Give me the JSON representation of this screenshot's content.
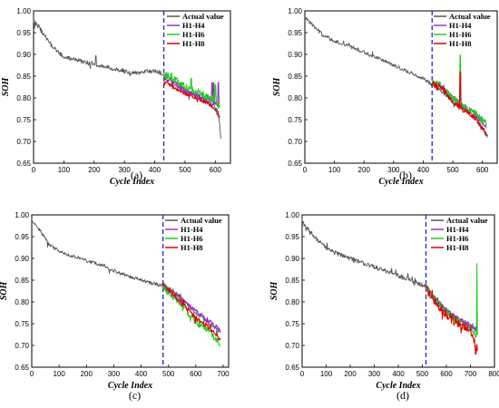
{
  "chart_data": [
    {
      "type": "line",
      "panel_label": "(a)",
      "xlabel": "Cycle Index",
      "ylabel": "SOH",
      "xlim": [
        0,
        650
      ],
      "ylim": [
        0.65,
        1.0
      ],
      "x_ticks": [
        0,
        100,
        200,
        300,
        400,
        500,
        600
      ],
      "y_ticks": [
        "0.65",
        "0.70",
        "0.75",
        "0.80",
        "0.85",
        "0.90",
        "0.95",
        "1.00"
      ],
      "split_x": 430,
      "legend_position": "top-right",
      "series": [
        {
          "name": "Actual value",
          "color": "#555555",
          "start": 0,
          "end": 620,
          "anchors": [
            [
              0,
              0.975
            ],
            [
              20,
              0.96
            ],
            [
              50,
              0.93
            ],
            [
              80,
              0.905
            ],
            [
              100,
              0.895
            ],
            [
              150,
              0.885
            ],
            [
              200,
              0.878
            ],
            [
              250,
              0.87
            ],
            [
              300,
              0.86
            ],
            [
              350,
              0.858
            ],
            [
              400,
              0.862
            ],
            [
              430,
              0.855
            ],
            [
              470,
              0.835
            ],
            [
              500,
              0.82
            ],
            [
              540,
              0.805
            ],
            [
              580,
              0.79
            ],
            [
              610,
              0.77
            ],
            [
              620,
              0.7
            ]
          ],
          "noise": 0.005,
          "spikes": [
            [
              205,
              0.897
            ],
            [
              595,
              0.835
            ]
          ]
        },
        {
          "name": "H1-H4",
          "color": "#9933cc",
          "start": 430,
          "end": 615,
          "anchors": [
            [
              430,
              0.848
            ],
            [
              470,
              0.83
            ],
            [
              500,
              0.815
            ],
            [
              540,
              0.805
            ],
            [
              580,
              0.795
            ],
            [
              600,
              0.785
            ],
            [
              615,
              0.775
            ]
          ],
          "noise": 0.006,
          "spikes": [
            [
              590,
              0.835
            ],
            [
              610,
              0.835
            ]
          ]
        },
        {
          "name": "H1-H6",
          "color": "#22cc22",
          "start": 430,
          "end": 615,
          "anchors": [
            [
              430,
              0.855
            ],
            [
              470,
              0.84
            ],
            [
              500,
              0.825
            ],
            [
              540,
              0.815
            ],
            [
              580,
              0.8
            ],
            [
              600,
              0.79
            ],
            [
              615,
              0.78
            ]
          ],
          "noise": 0.008,
          "spikes": [
            [
              520,
              0.845
            ],
            [
              600,
              0.83
            ]
          ]
        },
        {
          "name": "H1-H8",
          "color": "#dd0000",
          "start": 430,
          "end": 615,
          "anchors": [
            [
              430,
              0.84
            ],
            [
              470,
              0.82
            ],
            [
              500,
              0.81
            ],
            [
              540,
              0.8
            ],
            [
              580,
              0.785
            ],
            [
              600,
              0.77
            ],
            [
              615,
              0.755
            ]
          ],
          "noise": 0.004,
          "spikes": []
        }
      ]
    },
    {
      "type": "line",
      "panel_label": "(b)",
      "xlabel": "Cycle Index",
      "ylabel": "SOH",
      "xlim": [
        0,
        650
      ],
      "ylim": [
        0.65,
        1.0
      ],
      "x_ticks": [
        0,
        100,
        200,
        300,
        400,
        500,
        600
      ],
      "y_ticks": [
        "0.65",
        "0.70",
        "0.75",
        "0.80",
        "0.85",
        "0.90",
        "0.95",
        "1.00"
      ],
      "split_x": 430,
      "legend_position": "top-right",
      "series": [
        {
          "name": "Actual value",
          "color": "#555555",
          "start": 0,
          "end": 620,
          "anchors": [
            [
              0,
              0.985
            ],
            [
              30,
              0.965
            ],
            [
              60,
              0.945
            ],
            [
              100,
              0.93
            ],
            [
              150,
              0.92
            ],
            [
              200,
              0.905
            ],
            [
              250,
              0.89
            ],
            [
              300,
              0.875
            ],
            [
              350,
              0.86
            ],
            [
              400,
              0.845
            ],
            [
              430,
              0.83
            ],
            [
              470,
              0.81
            ],
            [
              500,
              0.79
            ],
            [
              540,
              0.775
            ],
            [
              580,
              0.755
            ],
            [
              610,
              0.72
            ],
            [
              620,
              0.71
            ]
          ],
          "noise": 0.004,
          "spikes": []
        },
        {
          "name": "H1-H4",
          "color": "#9933cc",
          "start": 430,
          "end": 615,
          "anchors": [
            [
              430,
              0.835
            ],
            [
              460,
              0.83
            ],
            [
              500,
              0.8
            ],
            [
              540,
              0.78
            ],
            [
              580,
              0.76
            ],
            [
              600,
              0.745
            ],
            [
              615,
              0.73
            ]
          ],
          "noise": 0.006,
          "spikes": [
            [
              525,
              0.82
            ]
          ]
        },
        {
          "name": "H1-H6",
          "color": "#22cc22",
          "start": 430,
          "end": 615,
          "anchors": [
            [
              430,
              0.838
            ],
            [
              460,
              0.83
            ],
            [
              500,
              0.8
            ],
            [
              540,
              0.78
            ],
            [
              580,
              0.765
            ],
            [
              600,
              0.75
            ],
            [
              615,
              0.74
            ]
          ],
          "noise": 0.006,
          "spikes": [
            [
              525,
              0.898
            ]
          ]
        },
        {
          "name": "H1-H8",
          "color": "#dd0000",
          "start": 430,
          "end": 615,
          "anchors": [
            [
              430,
              0.835
            ],
            [
              460,
              0.825
            ],
            [
              500,
              0.79
            ],
            [
              540,
              0.77
            ],
            [
              580,
              0.75
            ],
            [
              600,
              0.73
            ],
            [
              615,
              0.715
            ]
          ],
          "noise": 0.006,
          "spikes": [
            [
              525,
              0.86
            ]
          ]
        }
      ]
    },
    {
      "type": "line",
      "panel_label": "(c)",
      "xlabel": "Cycle Index",
      "ylabel": "SOH",
      "xlim": [
        0,
        720
      ],
      "ylim": [
        0.65,
        1.0
      ],
      "x_ticks": [
        0,
        100,
        200,
        300,
        400,
        500,
        600,
        700
      ],
      "y_ticks": [
        "0.65",
        "0.70",
        "0.75",
        "0.80",
        "0.85",
        "0.90",
        "0.95",
        "1.00"
      ],
      "split_x": 480,
      "legend_position": "top-right",
      "series": [
        {
          "name": "Actual value",
          "color": "#555555",
          "start": 0,
          "end": 690,
          "anchors": [
            [
              0,
              0.99
            ],
            [
              30,
              0.965
            ],
            [
              60,
              0.935
            ],
            [
              100,
              0.915
            ],
            [
              150,
              0.905
            ],
            [
              200,
              0.895
            ],
            [
              250,
              0.885
            ],
            [
              300,
              0.872
            ],
            [
              350,
              0.86
            ],
            [
              400,
              0.85
            ],
            [
              450,
              0.842
            ],
            [
              480,
              0.838
            ],
            [
              520,
              0.825
            ],
            [
              560,
              0.8
            ],
            [
              600,
              0.775
            ],
            [
              640,
              0.755
            ],
            [
              690,
              0.73
            ]
          ],
          "noise": 0.004,
          "spikes": []
        },
        {
          "name": "H1-H4",
          "color": "#9933cc",
          "start": 480,
          "end": 690,
          "anchors": [
            [
              480,
              0.84
            ],
            [
              520,
              0.82
            ],
            [
              560,
              0.8
            ],
            [
              600,
              0.78
            ],
            [
              640,
              0.76
            ],
            [
              690,
              0.735
            ]
          ],
          "noise": 0.005,
          "spikes": []
        },
        {
          "name": "H1-H6",
          "color": "#22cc22",
          "start": 480,
          "end": 690,
          "anchors": [
            [
              480,
              0.835
            ],
            [
              520,
              0.81
            ],
            [
              560,
              0.785
            ],
            [
              600,
              0.755
            ],
            [
              640,
              0.735
            ],
            [
              690,
              0.705
            ]
          ],
          "noise": 0.009,
          "spikes": []
        },
        {
          "name": "H1-H8",
          "color": "#dd0000",
          "start": 480,
          "end": 690,
          "anchors": [
            [
              480,
              0.838
            ],
            [
              520,
              0.815
            ],
            [
              560,
              0.79
            ],
            [
              600,
              0.765
            ],
            [
              640,
              0.745
            ],
            [
              690,
              0.715
            ]
          ],
          "noise": 0.006,
          "spikes": []
        }
      ]
    },
    {
      "type": "line",
      "panel_label": "(d)",
      "xlabel": "Cycle Index",
      "ylabel": "SOH",
      "xlim": [
        0,
        800
      ],
      "ylim": [
        0.65,
        1.0
      ],
      "x_ticks": [
        0,
        100,
        200,
        300,
        400,
        500,
        600,
        700,
        800
      ],
      "y_ticks": [
        "0.65",
        "0.70",
        "0.75",
        "0.80",
        "0.85",
        "0.90",
        "0.95",
        "1.00"
      ],
      "split_x": 515,
      "legend_position": "top-right",
      "series": [
        {
          "name": "Actual value",
          "color": "#555555",
          "start": 0,
          "end": 730,
          "anchors": [
            [
              0,
              0.985
            ],
            [
              30,
              0.96
            ],
            [
              60,
              0.945
            ],
            [
              100,
              0.925
            ],
            [
              150,
              0.91
            ],
            [
              200,
              0.9
            ],
            [
              250,
              0.89
            ],
            [
              300,
              0.88
            ],
            [
              350,
              0.87
            ],
            [
              400,
              0.86
            ],
            [
              450,
              0.85
            ],
            [
              515,
              0.835
            ],
            [
              560,
              0.805
            ],
            [
              600,
              0.78
            ],
            [
              650,
              0.76
            ],
            [
              700,
              0.745
            ],
            [
              730,
              0.73
            ]
          ],
          "noise": 0.005,
          "spikes": []
        },
        {
          "name": "H1-H4",
          "color": "#9933cc",
          "start": 515,
          "end": 730,
          "anchors": [
            [
              515,
              0.835
            ],
            [
              560,
              0.8
            ],
            [
              600,
              0.78
            ],
            [
              650,
              0.76
            ],
            [
              700,
              0.745
            ],
            [
              730,
              0.735
            ]
          ],
          "noise": 0.006,
          "spikes": []
        },
        {
          "name": "H1-H6",
          "color": "#22cc22",
          "start": 515,
          "end": 730,
          "anchors": [
            [
              515,
              0.835
            ],
            [
              560,
              0.8
            ],
            [
              600,
              0.775
            ],
            [
              650,
              0.755
            ],
            [
              700,
              0.74
            ],
            [
              730,
              0.72
            ]
          ],
          "noise": 0.007,
          "spikes": [
            [
              727,
              0.888
            ]
          ]
        },
        {
          "name": "H1-H8",
          "color": "#dd0000",
          "start": 515,
          "end": 730,
          "anchors": [
            [
              515,
              0.83
            ],
            [
              560,
              0.795
            ],
            [
              600,
              0.77
            ],
            [
              650,
              0.75
            ],
            [
              700,
              0.735
            ],
            [
              730,
              0.69
            ]
          ],
          "noise": 0.009,
          "spikes": [
            [
              722,
              0.68
            ]
          ]
        }
      ]
    }
  ]
}
